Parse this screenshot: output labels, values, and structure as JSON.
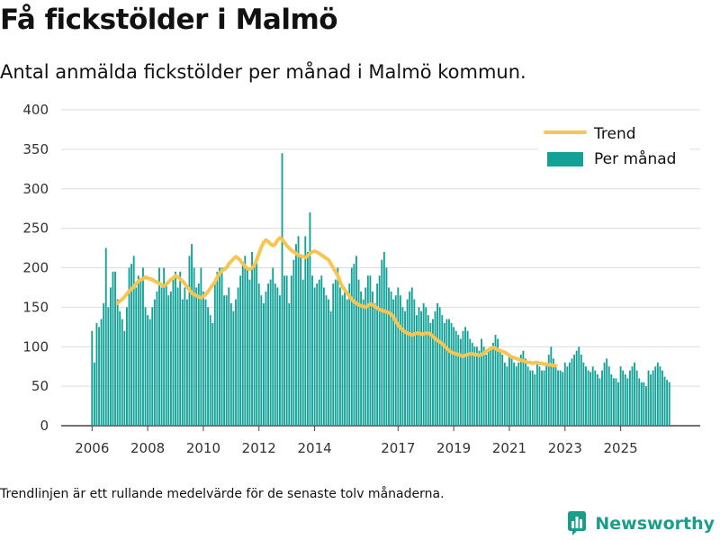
{
  "header": {
    "title": "Få fickstölder i Malmö",
    "subtitle": "Antal anmälda fickstölder per månad i Malmö kommun."
  },
  "footer": {
    "note": "Trendlinjen är ett rullande medelvärde för de senaste tolv månaderna.",
    "brand": "Newsworthy",
    "brand_icon": "bar-chart-logo-icon",
    "brand_color": "#1a9e8c"
  },
  "chart_data": {
    "type": "bar",
    "title": "",
    "xlabel": "",
    "ylabel": "",
    "ylim": [
      0,
      400
    ],
    "yticks": [
      0,
      50,
      100,
      150,
      200,
      250,
      300,
      350,
      400
    ],
    "grid": true,
    "legend_position": "top-right",
    "x_ticks": [
      "2006",
      "2008",
      "2010",
      "2012",
      "2014",
      "2017",
      "2019",
      "2021",
      "2023",
      "2025"
    ],
    "colors": {
      "bars": "#11a197",
      "trend": "#f7c552"
    },
    "start_period": "2006-01",
    "series": [
      {
        "name": "Per månad",
        "type": "bar",
        "values": [
          120,
          80,
          130,
          125,
          135,
          155,
          225,
          150,
          175,
          195,
          195,
          160,
          145,
          135,
          120,
          150,
          200,
          205,
          215,
          175,
          190,
          185,
          200,
          150,
          140,
          135,
          150,
          160,
          170,
          200,
          175,
          200,
          180,
          165,
          170,
          185,
          195,
          175,
          195,
          160,
          175,
          160,
          215,
          230,
          200,
          175,
          180,
          200,
          170,
          160,
          150,
          140,
          130,
          180,
          195,
          200,
          200,
          165,
          165,
          175,
          155,
          145,
          160,
          175,
          190,
          205,
          215,
          200,
          185,
          220,
          205,
          215,
          180,
          165,
          155,
          170,
          180,
          185,
          200,
          180,
          175,
          165,
          345,
          190,
          190,
          155,
          190,
          210,
          230,
          240,
          215,
          185,
          240,
          220,
          270,
          190,
          175,
          180,
          185,
          190,
          175,
          165,
          160,
          145,
          180,
          185,
          200,
          175,
          165,
          175,
          160,
          180,
          200,
          205,
          215,
          185,
          170,
          160,
          175,
          190,
          190,
          170,
          155,
          180,
          190,
          210,
          220,
          200,
          175,
          170,
          160,
          165,
          175,
          165,
          150,
          145,
          160,
          170,
          175,
          160,
          140,
          150,
          145,
          155,
          150,
          140,
          130,
          135,
          145,
          155,
          150,
          140,
          130,
          135,
          135,
          130,
          125,
          120,
          115,
          110,
          120,
          125,
          120,
          110,
          105,
          100,
          100,
          95,
          110,
          100,
          90,
          95,
          100,
          105,
          115,
          110,
          95,
          90,
          80,
          75,
          90,
          85,
          80,
          75,
          80,
          90,
          95,
          85,
          75,
          70,
          70,
          65,
          80,
          75,
          70,
          70,
          80,
          90,
          100,
          85,
          75,
          70,
          70,
          68,
          80,
          75,
          80,
          85,
          90,
          95,
          100,
          90,
          80,
          75,
          70,
          68,
          75,
          70,
          65,
          60,
          70,
          80,
          85,
          75,
          65,
          60,
          60,
          55,
          75,
          70,
          65,
          60,
          70,
          75,
          80,
          70,
          60,
          55,
          55,
          50,
          70,
          65,
          70,
          75,
          80,
          75,
          70,
          62,
          58,
          55
        ]
      },
      {
        "name": "Trend",
        "type": "line",
        "start_index": 11,
        "values": [
          155,
          158,
          160,
          163,
          167,
          170,
          173,
          176,
          180,
          183,
          185,
          186,
          188,
          187,
          186,
          185,
          183,
          182,
          180,
          178,
          177,
          179,
          182,
          185,
          187,
          190,
          188,
          186,
          183,
          180,
          176,
          172,
          168,
          166,
          165,
          163,
          162,
          164,
          166,
          170,
          174,
          178,
          182,
          188,
          193,
          196,
          198,
          200,
          205,
          208,
          211,
          214,
          212,
          209,
          205,
          202,
          199,
          198,
          200,
          203,
          210,
          218,
          226,
          232,
          235,
          233,
          230,
          228,
          230,
          235,
          238,
          236,
          232,
          228,
          225,
          222,
          220,
          218,
          216,
          215,
          214,
          213,
          215,
          218,
          220,
          221,
          220,
          218,
          216,
          214,
          212,
          210,
          205,
          200,
          195,
          190,
          182,
          176,
          172,
          168,
          164,
          160,
          157,
          155,
          153,
          152,
          151,
          150,
          152,
          154,
          153,
          151,
          149,
          147,
          146,
          145,
          144,
          143,
          141,
          138,
          132,
          128,
          124,
          121,
          119,
          117,
          116,
          115,
          116,
          117,
          117,
          116,
          116,
          117,
          117,
          116,
          113,
          110,
          108,
          106,
          104,
          101,
          98,
          95,
          93,
          92,
          91,
          90,
          89,
          88,
          89,
          90,
          91,
          91,
          90,
          90,
          89,
          90,
          92,
          94,
          96,
          98,
          99,
          98,
          96,
          95,
          94,
          93,
          91,
          89,
          87,
          86,
          85,
          84,
          83,
          82,
          81,
          80,
          80,
          79,
          80,
          80,
          79,
          79,
          78,
          78,
          77,
          77,
          76,
          76
        ]
      }
    ]
  }
}
